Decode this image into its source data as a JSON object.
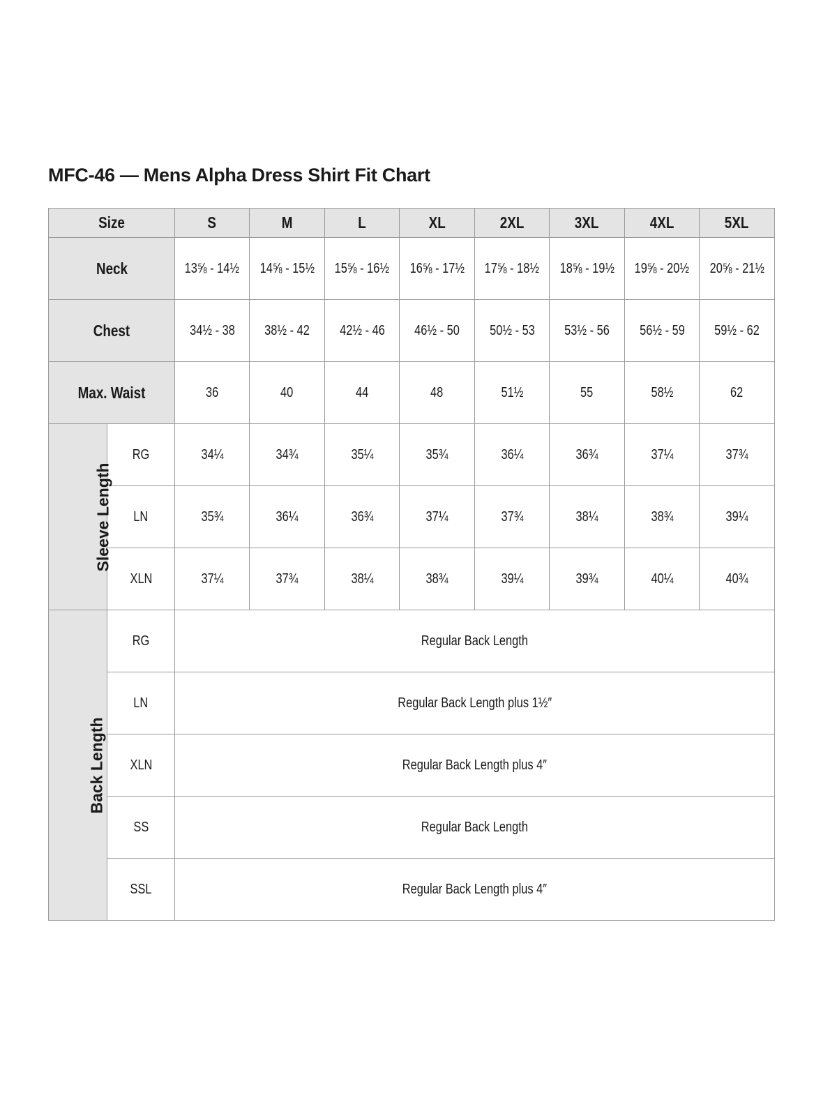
{
  "title": "MFC-46 — Mens Alpha Dress Shirt Fit Chart",
  "header": {
    "label": "Size",
    "sizes": [
      "S",
      "M",
      "L",
      "XL",
      "2XL",
      "3XL",
      "4XL",
      "5XL"
    ]
  },
  "rows": [
    {
      "label": "Neck",
      "values": [
        "13⅝ - 14½",
        "14⅝ - 15½",
        "15⅝ - 16½",
        "16⅝ - 17½",
        "17⅝ - 18½",
        "18⅝ - 19½",
        "19⅝ - 20½",
        "20⅝ - 21½"
      ]
    },
    {
      "label": "Chest",
      "values": [
        "34½ - 38",
        "38½ - 42",
        "42½ - 46",
        "46½ - 50",
        "50½ - 53",
        "53½ - 56",
        "56½ - 59",
        "59½ - 62"
      ]
    },
    {
      "label": "Max. Waist",
      "values": [
        "36",
        "40",
        "44",
        "48",
        "51½",
        "55",
        "58½",
        "62"
      ]
    }
  ],
  "sleeve": {
    "label": "Sleeve Length",
    "rows": [
      {
        "label": "RG",
        "values": [
          "34¼",
          "34¾",
          "35¼",
          "35¾",
          "36¼",
          "36¾",
          "37¼",
          "37¾"
        ]
      },
      {
        "label": "LN",
        "values": [
          "35¾",
          "36¼",
          "36¾",
          "37¼",
          "37¾",
          "38¼",
          "38¾",
          "39¼"
        ]
      },
      {
        "label": "XLN",
        "values": [
          "37¼",
          "37¾",
          "38¼",
          "38¾",
          "39¼",
          "39¾",
          "40¼",
          "40¾"
        ]
      }
    ]
  },
  "back": {
    "label": "Back Length",
    "rows": [
      {
        "label": "RG",
        "value": "Regular Back Length"
      },
      {
        "label": "LN",
        "value": "Regular Back Length plus 1½″"
      },
      {
        "label": "XLN",
        "value": "Regular Back Length plus 4″"
      },
      {
        "label": "SS",
        "value": "Regular Back Length"
      },
      {
        "label": "SSL",
        "value": "Regular Back Length plus 4″"
      }
    ]
  },
  "colors": {
    "header_bg": "#e4e4e4",
    "border": "#9a9a9a"
  }
}
